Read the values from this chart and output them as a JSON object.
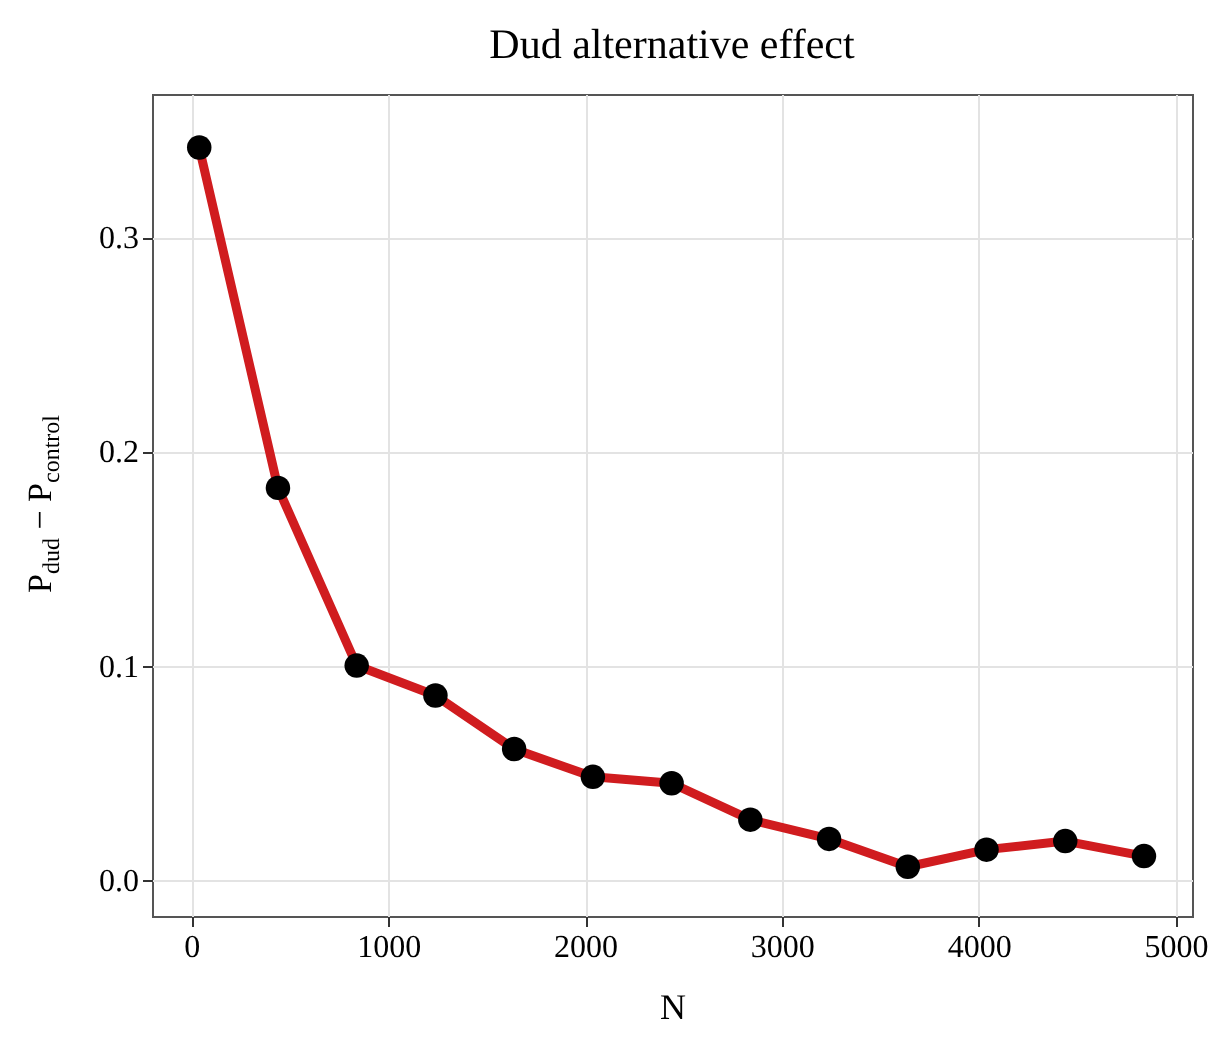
{
  "chart_data": {
    "type": "line",
    "title": "Dud alternative effect",
    "xlabel": "N",
    "ylabel": "P$_{dud}$ − P$_{control}$",
    "x": [
      40,
      440,
      840,
      1240,
      1640,
      2040,
      2440,
      2840,
      3240,
      3640,
      4040,
      4440,
      4840
    ],
    "series": [
      {
        "color": "#d01c1f",
        "values": [
          0.342,
          0.183,
          0.1,
          0.086,
          0.061,
          0.048,
          0.045,
          0.028,
          0.019,
          0.006,
          0.014,
          0.018,
          0.011
        ]
      }
    ],
    "xlim": [
      -200,
      5084
    ],
    "xticks": [
      0,
      1000,
      2000,
      3000,
      4000,
      5000
    ],
    "ylim": [
      -0.017,
      0.367
    ],
    "yticks": [
      {
        "value": 0,
        "label": "0.0"
      },
      {
        "value": 0.1,
        "label": "0.1"
      },
      {
        "value": 0.2,
        "label": "0.2"
      },
      {
        "value": 0.3,
        "label": "0.3"
      }
    ],
    "grid": true,
    "marker": "circle",
    "line_style": "solid"
  }
}
